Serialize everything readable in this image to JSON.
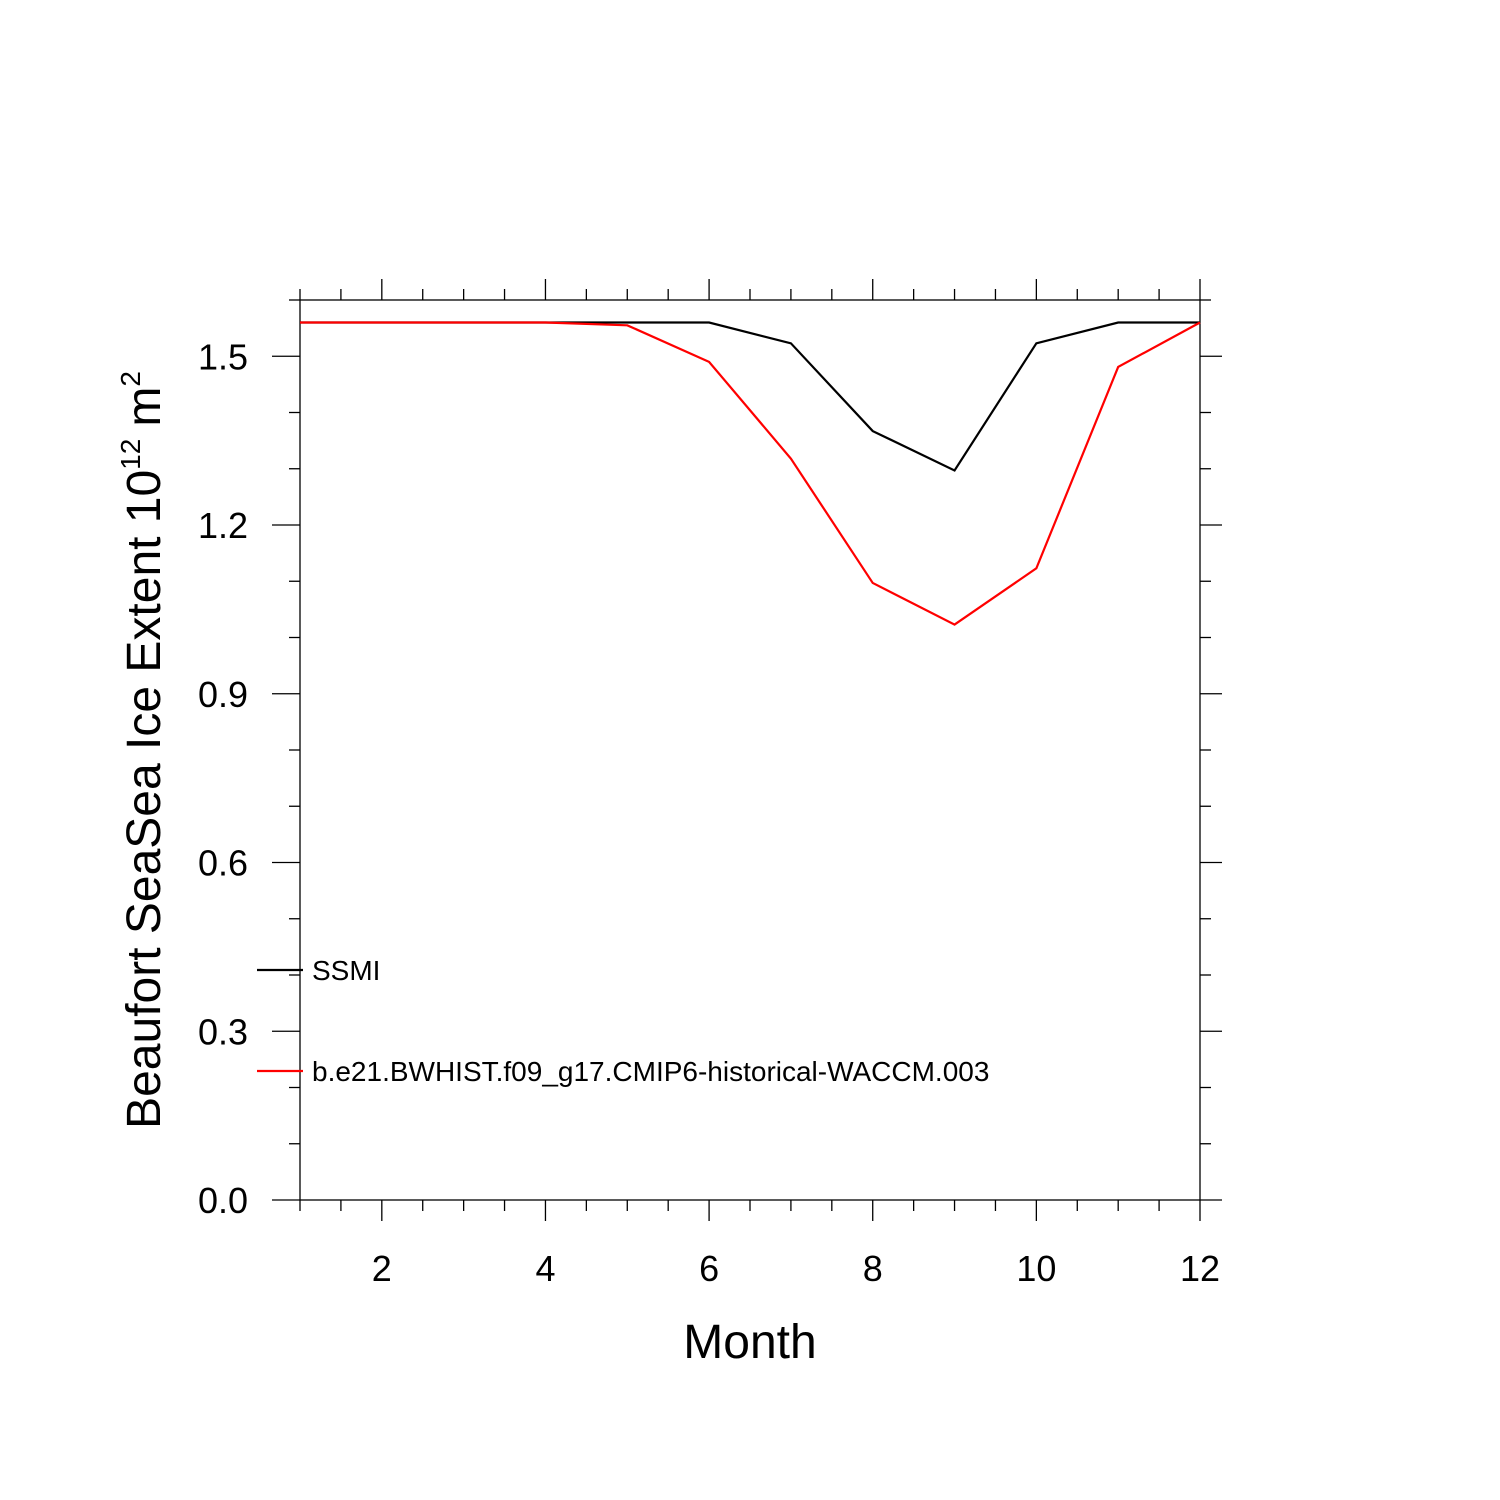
{
  "chart_data": {
    "type": "line",
    "xlabel": "Month",
    "ylabel": {
      "main": "Beaufort SeaSea Ice Extent 10",
      "exponent": "12",
      "unit": "m",
      "unit_exponent": "2"
    },
    "xlim": [
      1,
      12
    ],
    "ylim": [
      0,
      1.6
    ],
    "xticks_major": [
      2,
      4,
      6,
      8,
      10,
      12
    ],
    "xticks_major_labels": [
      "2",
      "4",
      "6",
      "8",
      "10",
      "12"
    ],
    "yticks_major": [
      0,
      0.3,
      0.6,
      0.9,
      1.2,
      1.5
    ],
    "yticks_major_labels": [
      "0.0",
      "0.3",
      "0.6",
      "0.9",
      "1.2",
      "1.5"
    ],
    "grid": false,
    "legend_position": "lower-left",
    "x": [
      1,
      2,
      3,
      4,
      5,
      6,
      7,
      8,
      9,
      10,
      11,
      12
    ],
    "series": [
      {
        "name": "SSMI",
        "color": "#000000",
        "values": [
          1.56,
          1.56,
          1.56,
          1.56,
          1.56,
          1.56,
          1.523,
          1.367,
          1.297,
          1.523,
          1.56,
          1.56
        ]
      },
      {
        "name": "b.e21.BWHIST.f09_g17.CMIP6-historical-WACCM.003",
        "color": "#ff0000",
        "values": [
          1.56,
          1.56,
          1.56,
          1.56,
          1.555,
          1.49,
          1.318,
          1.097,
          1.023,
          1.123,
          1.481,
          1.56
        ]
      }
    ]
  }
}
